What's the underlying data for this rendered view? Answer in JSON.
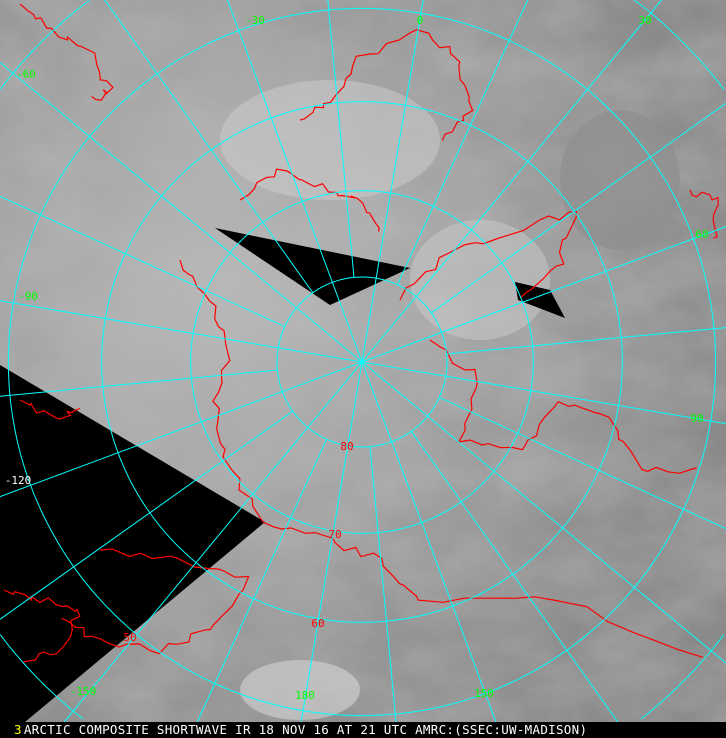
{
  "map": {
    "projection": "polar stereographic (north pole)",
    "colors": {
      "grid": "#00ffff",
      "coastline": "#ff0000",
      "longitude_label": "#00ff00",
      "latitude_label": "#ff0000",
      "no_data": "#000000"
    },
    "longitude_labels": [
      "0",
      "30",
      "60",
      "90",
      "120",
      "150",
      "180",
      "-150",
      "-120",
      "-90",
      "-60",
      "-30"
    ],
    "latitude_labels": [
      "80",
      "70",
      "60",
      "50"
    ]
  },
  "caption": {
    "frame_number": "3",
    "text": "ARCTIC COMPOSITE SHORTWAVE IR 18 NOV 16 AT 21 UTC AMRC:(SSEC:UW-MADISON)"
  }
}
